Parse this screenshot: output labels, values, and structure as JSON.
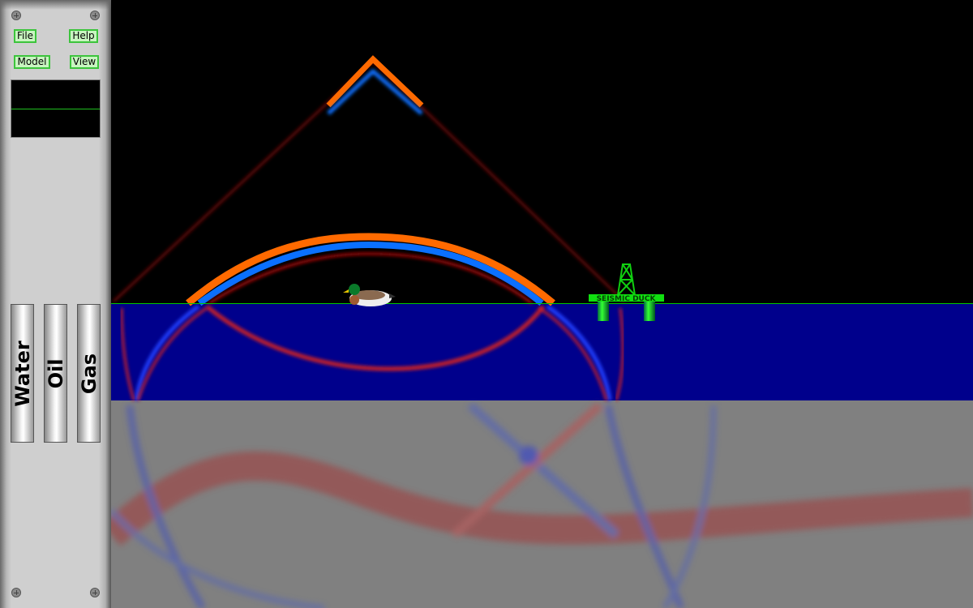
{
  "menu": {
    "file": "File",
    "help": "Help",
    "model": "Model",
    "view": "View"
  },
  "fluids": [
    "Water",
    "Oil",
    "Gas"
  ],
  "platform": {
    "label": "SEISMIC DUCK"
  },
  "colors": {
    "air": "#000000",
    "water": "#00008c",
    "rock": "#808080",
    "surface_line": "#00c800",
    "accent": "#3cc43c"
  }
}
